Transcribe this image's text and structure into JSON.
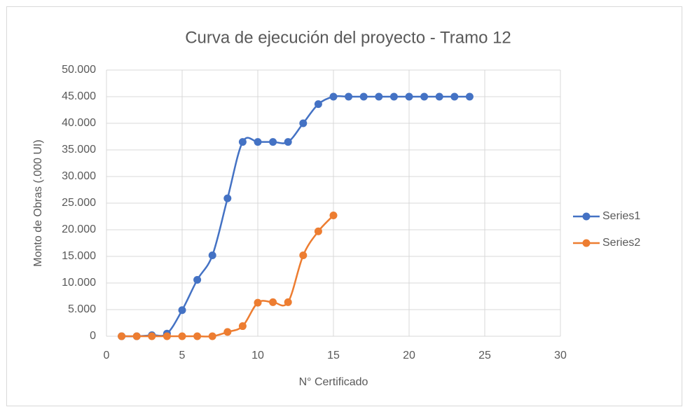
{
  "chart_data": {
    "type": "scatter",
    "title": "Curva de ejecución del proyecto - Tramo 12",
    "x_label": "N° Certificado",
    "y_label": "Monto de Obras (.000 UI)",
    "xlim": [
      0,
      30
    ],
    "xticks": [
      0,
      5,
      10,
      15,
      20,
      25,
      30
    ],
    "ylim": [
      0,
      50000
    ],
    "yticks": [
      0,
      {
        "value": 5000,
        "label": "5.000"
      },
      {
        "value": 10000,
        "label": "10.000"
      },
      {
        "value": 15000,
        "label": "15.000"
      },
      {
        "value": 20000,
        "label": "20.000"
      },
      {
        "value": 25000,
        "label": "25.000"
      },
      {
        "value": 30000,
        "label": "30.000"
      },
      {
        "value": 35000,
        "label": "35.000"
      },
      {
        "value": 40000,
        "label": "40.000"
      },
      {
        "value": 45000,
        "label": "45.000"
      },
      {
        "value": 50000,
        "label": "50.000"
      }
    ],
    "grid": true,
    "legend": "right",
    "series": [
      {
        "name": "Series1",
        "color": "#4472c4",
        "x": [
          1,
          2,
          3,
          4,
          5,
          6,
          7,
          8,
          9,
          10,
          11,
          12,
          13,
          14,
          15,
          16,
          17,
          18,
          19,
          20,
          21,
          22,
          23,
          24
        ],
        "values": [
          0,
          0,
          200,
          500,
          4900,
          10600,
          15200,
          25900,
          36500,
          36500,
          36500,
          36500,
          40000,
          43600,
          45000,
          45000,
          45000,
          45000,
          45000,
          45000,
          45000,
          45000,
          45000,
          45000
        ]
      },
      {
        "name": "Series2",
        "color": "#ed7d31",
        "x": [
          1,
          2,
          3,
          4,
          5,
          6,
          7,
          8,
          9,
          10,
          11,
          12,
          13,
          14,
          15
        ],
        "values": [
          0,
          0,
          0,
          0,
          0,
          0,
          0,
          800,
          1900,
          6300,
          6400,
          6400,
          15200,
          19700,
          22700
        ]
      }
    ]
  }
}
